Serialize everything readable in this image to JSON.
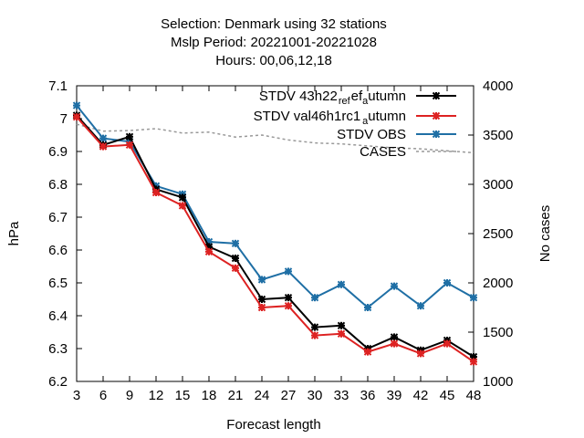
{
  "chart_data": {
    "type": "line",
    "title_lines": [
      "Selection: Denmark using    32 stations",
      "Mslp   Period: 20221001-20221028",
      "Hours:  00,06,12,18"
    ],
    "xlabel": "Forecast length",
    "ylabel": "hPa",
    "y2label": "No cases",
    "xlim": [
      3,
      48
    ],
    "ylim": [
      6.2,
      7.1
    ],
    "y2lim": [
      1000,
      4000
    ],
    "x": [
      3,
      6,
      9,
      12,
      15,
      18,
      21,
      24,
      27,
      30,
      33,
      36,
      39,
      42,
      45,
      48
    ],
    "x_ticks": [
      "3",
      "6",
      "9",
      "12",
      "15",
      "18",
      "21",
      "24",
      "27",
      "30",
      "33",
      "36",
      "39",
      "42",
      "45",
      "48"
    ],
    "y_ticks": [
      "6.2",
      "6.3",
      "6.4",
      "6.5",
      "6.6",
      "6.7",
      "6.8",
      "6.9",
      "7",
      "7.1"
    ],
    "y2_ticks": [
      "1000",
      "1500",
      "2000",
      "2500",
      "3000",
      "3500",
      "4000"
    ],
    "legend_position": "top-right",
    "series": [
      {
        "name": "STDV 43h22_ref_autumn",
        "legend_main": "STDV 43h22",
        "legend_sub1": "ref",
        "legend_sub2": "utumn",
        "legend_sub_a": "a",
        "color": "#000000",
        "values": [
          7.01,
          6.92,
          6.945,
          6.785,
          6.76,
          6.61,
          6.575,
          6.45,
          6.455,
          6.365,
          6.37,
          6.3,
          6.335,
          6.295,
          6.325,
          6.275
        ]
      },
      {
        "name": "STDV val46h1rc1_autumn",
        "legend_main": "STDV val46h1rc1",
        "legend_sub_a": "a",
        "legend_sub2": "utumn",
        "color": "#dd2222",
        "values": [
          7.005,
          6.915,
          6.92,
          6.775,
          6.735,
          6.595,
          6.545,
          6.425,
          6.43,
          6.34,
          6.345,
          6.29,
          6.315,
          6.285,
          6.315,
          6.26
        ]
      },
      {
        "name": "STDV OBS",
        "color": "#1f6fa5",
        "values": [
          7.04,
          6.94,
          6.93,
          6.795,
          6.77,
          6.625,
          6.62,
          6.51,
          6.535,
          6.455,
          6.495,
          6.425,
          6.49,
          6.43,
          6.5,
          6.455
        ]
      },
      {
        "name": "CASES",
        "axis": "y2",
        "color": "#999999",
        "x_dense": [
          3,
          6,
          9,
          12,
          15,
          18,
          21,
          24,
          27,
          30,
          33,
          36,
          39,
          42,
          45,
          48
        ],
        "values": [
          3610,
          3540,
          3545,
          3565,
          3520,
          3530,
          3480,
          3500,
          3450,
          3420,
          3410,
          3390,
          3370,
          3360,
          3340,
          3320
        ]
      }
    ]
  }
}
